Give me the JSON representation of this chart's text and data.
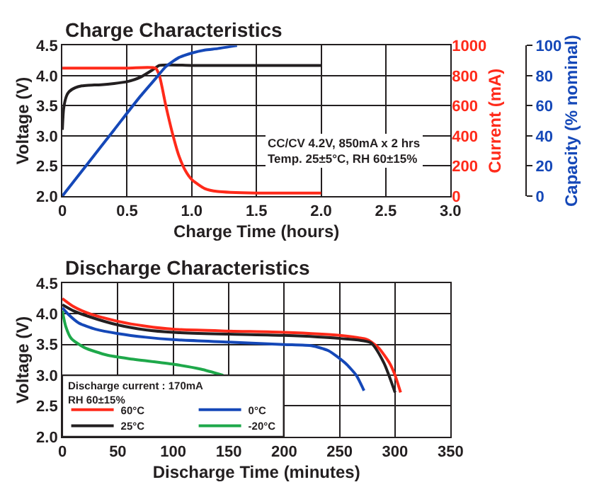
{
  "chart_data": [
    {
      "type": "line",
      "title": "Charge Characteristics",
      "xlabel": "Charge Time (hours)",
      "ylabel": "Voltage (V)",
      "y2label": "Current (mA)",
      "y3label": "Capacity (% nominal)",
      "xlim": [
        0,
        3
      ],
      "xticks": [
        0,
        0.5,
        {
          "value": 1,
          "label": "1.0"
        },
        1.5,
        {
          "value": 2,
          "label": "2.0"
        },
        2.5,
        {
          "value": 3,
          "label": "3.0"
        }
      ],
      "ylim": [
        2,
        4.5
      ],
      "yticks": [
        {
          "value": 2,
          "label": "2.0"
        },
        2.5,
        {
          "value": 3,
          "label": "3.0"
        },
        3.5,
        {
          "value": 4,
          "label": "4.0"
        },
        4.5
      ],
      "y2lim": [
        0,
        1000
      ],
      "y2ticks": [
        0,
        200,
        400,
        600,
        800,
        1000
      ],
      "y3lim": [
        0,
        100
      ],
      "y3ticks": [
        0,
        20,
        40,
        60,
        80,
        100
      ],
      "grid": true,
      "annotations": [
        "CC/CV 4.2V, 850mA x 2 hrs",
        "Temp. 25±5°C, RH 60±15%"
      ],
      "series": [
        {
          "color": "#231f20",
          "x": [
            0,
            0.01,
            0.03,
            0.05,
            0.1,
            0.15,
            0.2,
            0.3,
            0.4,
            0.5,
            0.6,
            0.7,
            0.75,
            1.0,
            1.5,
            2.0
          ],
          "values": [
            3.1,
            3.45,
            3.65,
            3.73,
            3.8,
            3.83,
            3.84,
            3.85,
            3.87,
            3.9,
            3.97,
            4.1,
            4.17,
            4.17,
            4.17,
            4.17
          ]
        },
        {
          "color": "#ff2a1a",
          "axis": "y2",
          "x": [
            0,
            0.5,
            0.72,
            0.75,
            0.8,
            0.85,
            0.9,
            0.95,
            1.0,
            1.1,
            1.2,
            1.5,
            2.0
          ],
          "values": [
            850,
            850,
            850,
            800,
            600,
            420,
            270,
            170,
            110,
            50,
            30,
            20,
            20
          ]
        },
        {
          "color": "#1548b8",
          "axis": "y3",
          "x": [
            0,
            0.2,
            0.4,
            0.6,
            0.72,
            0.8,
            0.9,
            1.0,
            1.1,
            1.2,
            1.35
          ],
          "values": [
            0,
            22,
            44,
            66,
            78,
            86,
            92,
            95,
            97,
            98,
            100
          ]
        }
      ]
    },
    {
      "type": "line",
      "title": "Discharge Characteristics",
      "xlabel": "Discharge Time (minutes)",
      "ylabel": "Voltage (V)",
      "xlim": [
        0,
        350
      ],
      "xticks": [
        0,
        50,
        100,
        150,
        200,
        250,
        300,
        350
      ],
      "ylim": [
        2,
        4.5
      ],
      "yticks": [
        {
          "value": 2,
          "label": "2.0"
        },
        2.5,
        {
          "value": 3,
          "label": "3.0"
        },
        3.5,
        {
          "value": 4,
          "label": "4.0"
        },
        4.5
      ],
      "grid": true,
      "legend": "bottom left",
      "annotations": [
        "Discharge current : 170mA",
        "RH 60±15%"
      ],
      "series": [
        {
          "name": "60°C",
          "color": "#ff2a1a",
          "x": [
            0,
            10,
            25,
            50,
            75,
            100,
            150,
            200,
            250,
            275,
            285,
            295,
            300,
            305
          ],
          "values": [
            4.25,
            4.12,
            4.0,
            3.88,
            3.8,
            3.75,
            3.72,
            3.7,
            3.65,
            3.58,
            3.45,
            3.2,
            3.0,
            2.72
          ]
        },
        {
          "name": "25°C",
          "color": "#231f20",
          "x": [
            0,
            10,
            25,
            50,
            75,
            100,
            150,
            200,
            250,
            278,
            290,
            300
          ],
          "values": [
            4.15,
            4.05,
            3.95,
            3.82,
            3.74,
            3.7,
            3.67,
            3.65,
            3.6,
            3.53,
            3.2,
            2.72
          ]
        },
        {
          "name": "0°C",
          "color": "#1548b8",
          "x": [
            0,
            5,
            15,
            30,
            50,
            75,
            100,
            150,
            200,
            225,
            240,
            255,
            265,
            272
          ],
          "values": [
            4.1,
            4.0,
            3.85,
            3.75,
            3.68,
            3.62,
            3.58,
            3.54,
            3.5,
            3.48,
            3.4,
            3.2,
            3.0,
            2.75
          ]
        },
        {
          "name": "-20°C",
          "color": "#1ea84a",
          "x": [
            0,
            3,
            8,
            20,
            40,
            60,
            100,
            125,
            145
          ],
          "values": [
            4.05,
            3.8,
            3.6,
            3.45,
            3.33,
            3.27,
            3.18,
            3.1,
            3.0
          ]
        }
      ]
    }
  ]
}
